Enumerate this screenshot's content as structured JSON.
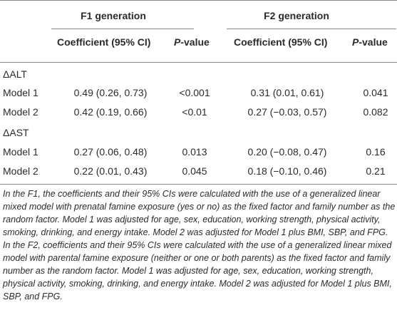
{
  "header": {
    "group_f1": "F1 generation",
    "group_f2": "F2 generation",
    "coef_label": "Coefficient (95% CI)",
    "p_italic": "P",
    "p_suffix": "-value"
  },
  "sections": [
    {
      "label": "ΔALT",
      "rows": [
        {
          "model": "Model 1",
          "f1_coef": "0.49 (0.26, 0.73)",
          "f1_p": "<0.001",
          "f2_coef": "0.31 (0.01, 0.61)",
          "f2_p": "0.041"
        },
        {
          "model": "Model 2",
          "f1_coef": "0.42 (0.19, 0.66)",
          "f1_p": "<0.01",
          "f2_coef": "0.27 (−0.03, 0.57)",
          "f2_p": "0.082"
        }
      ]
    },
    {
      "label": "ΔAST",
      "rows": [
        {
          "model": "Model 1",
          "f1_coef": "0.27 (0.06, 0.48)",
          "f1_p": "0.013",
          "f2_coef": "0.20 (−0.08, 0.47)",
          "f2_p": "0.16"
        },
        {
          "model": "Model 2",
          "f1_coef": "0.22 (0.01, 0.43)",
          "f1_p": "0.045",
          "f2_coef": "0.18 (−0.10, 0.46)",
          "f2_p": "0.21"
        }
      ]
    }
  ],
  "footnote": "In the F1, the coefficients and their 95% CIs were calculated with the use of a generalized linear mixed model with prenatal famine exposure (yes or no) as the fixed factor and family number as the random factor. Model 1 was adjusted for age, sex, education, working strength, physical activity, smoking, drinking, and energy intake. Model 2 was adjusted for Model 1 plus BMI, SBP, and FPG. In the F2, coefficients and their 95% CIs were calculated with the use of a generalized linear mixed model with parental famine exposure (neither or one or both parents) as the fixed factor and family number as the random factor. Model 1 was adjusted for age, sex, education, working strength, physical activity, smoking, drinking, and energy intake. Model 2 was adjusted for Model 1 plus BMI, SBP, and FPG."
}
